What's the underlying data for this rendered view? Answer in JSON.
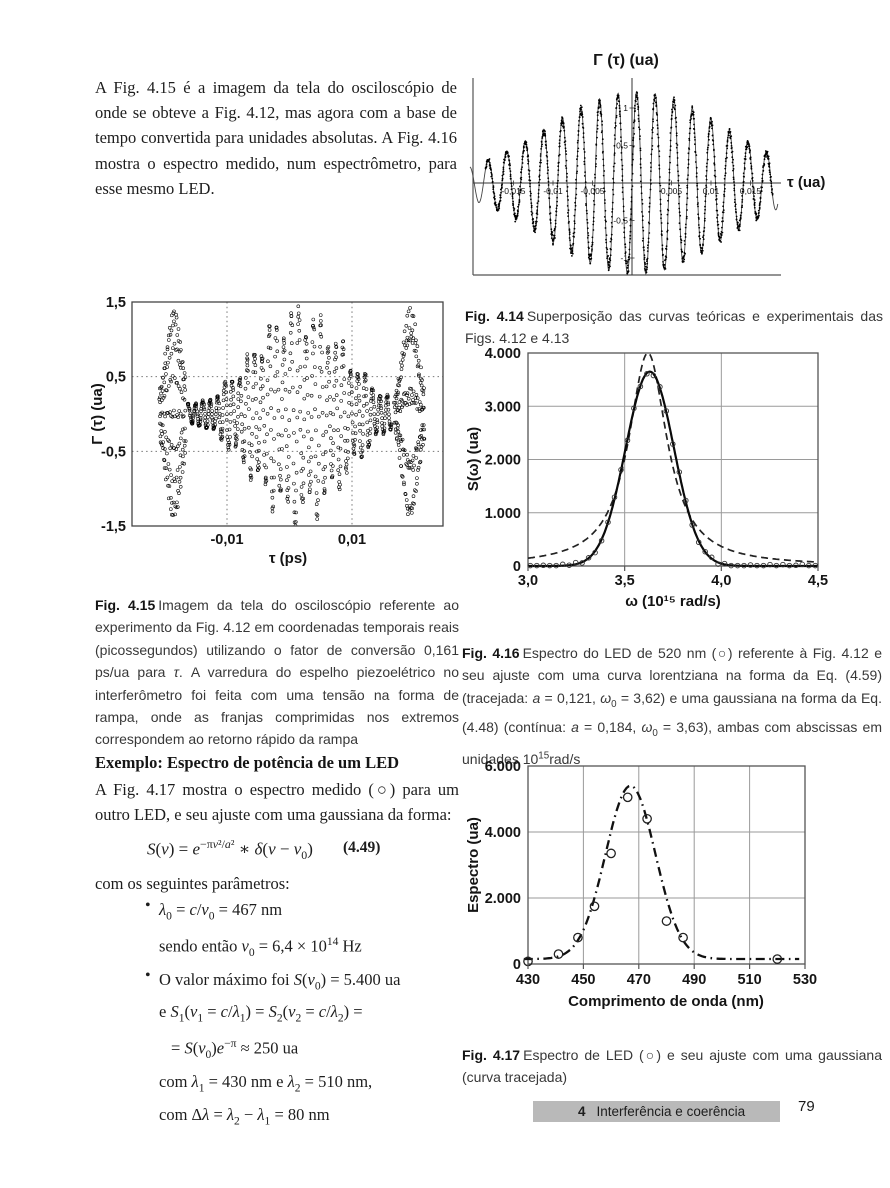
{
  "page": {
    "footer": {
      "chapter_number": "4",
      "chapter_title": "Interferência e coerência"
    },
    "page_number": "79"
  },
  "intro_paragraph": "A Fig. 4.15 é a imagem da tela do osciloscópio de onde se obteve a Fig. 4.12, mas agora com a base de tempo convertida para unidades absolutas. A Fig. 4.16 mostra o espectro medido, num espectrômetro, para esse mesmo LED.",
  "captions": {
    "fig414": {
      "label": "Fig. 4.14",
      "text_html": "Superposição das curvas teóricas e experimentais das Figs. 4.12 e 4.13"
    },
    "fig415": {
      "label": "Fig. 4.15",
      "text_html": "Imagem da tela do osciloscópio referente ao experimento da Fig. 4.12 em coordenadas temporais reais (picossegundos) utilizando o fator de conversão 0,161 ps/ua para <i>τ</i>. A varredura do espelho piezoelétrico no interferômetro foi feita com uma tensão na forma de rampa, onde as franjas comprimidas nos extremos correspondem ao retorno rápido da rampa"
    },
    "fig416": {
      "label": "Fig. 4.16",
      "text_html": "Espectro do LED de 520 nm (○) referente à Fig. 4.12 e seu ajuste com uma curva lorentziana na forma da Eq. (4.59) (tracejada: <i>a</i> = 0,121, <i>ω</i><sub>0</sub> = 3,62) e uma gaussiana na forma da Eq. (4.48) (contínua: <i>a</i> = 0,184, <i>ω</i><sub>0</sub> = 3,63), ambas com abscissas em unidades 10<sup>15</sup>rad/s"
    },
    "fig417": {
      "label": "Fig. 4.17",
      "text_html": "Espectro de LED (○) e seu ajuste com uma gaussiana (curva tracejada)"
    }
  },
  "example": {
    "heading": "Exemplo: Espectro de potência de um LED",
    "intro_html": "A Fig. 4.17 mostra o espectro medido (○) para um outro LED, e seu ajuste com uma gaussiana da forma:",
    "equation_html": "<i>S</i>(<i>ν</i>) = <i>e</i><sup>−π<i>ν</i>²/<i>a</i>²</sup> ∗ <i>δ</i>(<i>ν</i> − <i>ν</i><sub>0</sub>)",
    "equation_number": "(4.49)",
    "params_lead": "com os seguintes parâmetros:",
    "bullets": [
      {
        "lines": [
          "<i>λ</i><sub>0</sub> = <i>c</i>/<i>ν</i><sub>0</sub> = 467 nm",
          "sendo então <i>ν</i><sub>0</sub> = 6,4 × 10<sup>14</sup> Hz"
        ]
      },
      {
        "lines": [
          "O valor máximo foi <i>S</i>(<i>ν</i><sub>0</sub>) = 5.400 ua",
          "e <i>S</i><sub>1</sub>(<i>ν</i><sub>1</sub> = <i>c</i>/<i>λ</i><sub>1</sub>) = <i>S</i><sub>2</sub>(<i>ν</i><sub>2</sub> = <i>c</i>/<i>λ</i><sub>2</sub>) =",
          "= <i>S</i>(<i>ν</i><sub>0</sub>)<i>e</i><sup>−π</sup> ≈ 250 ua",
          "com <i>λ</i><sub>1</sub> = 430 nm e <i>λ</i><sub>2</sub> = 510 nm,",
          "com Δ<i>λ</i> = <i>λ</i><sub>2</sub> − <i>λ</i><sub>1</sub> = 80 nm"
        ]
      }
    ]
  },
  "chart_data": [
    {
      "id": "fig414",
      "type": "line",
      "title": "Γ (τ)  (ua)",
      "xlabel": "τ (ua)",
      "x_tick_labels": [
        "-0,015",
        "-0,01",
        "-0,005",
        "0,005",
        "0,01",
        "0,015"
      ],
      "x_tick_values": [
        -0.015,
        -0.01,
        -0.005,
        0.005,
        0.01,
        0.015
      ],
      "y_tick_labels": [
        "1",
        "0,5",
        "-0,5",
        "-1"
      ],
      "y_tick_values": [
        1,
        0.5,
        -0.5,
        -1
      ],
      "x_range": [
        -0.0205,
        0.0185
      ],
      "y_range": [
        -1.45,
        1.45
      ],
      "series": [
        {
          "name": "curva experimental (pontos)",
          "style": "dots"
        },
        {
          "name": "curva teórica (linha contínua)",
          "style": "line"
        }
      ],
      "signal_model": {
        "carrier_period": 0.00235,
        "envelope_peak": 1.22,
        "envelope_center": 0.0005,
        "envelope_sigma": 0.016,
        "dots_range": [
          -0.0185,
          0.0178
        ]
      }
    },
    {
      "id": "fig415",
      "type": "scatter",
      "xlabel": "τ (ps)",
      "ylabel": "Γ (τ)  (ua)",
      "marker": "open-circle",
      "grid": "dotted",
      "x_tick_labels": [
        "-0,01",
        "0,01"
      ],
      "x_tick_values": [
        -0.01,
        0.01
      ],
      "y_tick_labels": [
        "1,5",
        "0,5",
        "-0,5",
        "-1,5"
      ],
      "y_tick_values": [
        1.5,
        0.5,
        -0.5,
        -1.5
      ],
      "x_range": [
        -0.0252,
        0.0248
      ],
      "y_range": [
        -1.5,
        1.5
      ],
      "conversion_factor": "0,161 ps/ua",
      "signal_model": {
        "carrier_period": 0.00118,
        "envelope_peak": 1.27,
        "envelope_center": 0.0015,
        "envelope_sigma": 0.0105,
        "envelope_floor": 0.15,
        "main_range": [
          -0.0163,
          0.0164
        ],
        "bursts": [
          {
            "center": -0.0185,
            "sigma": 0.0017,
            "peak": 1.32,
            "period": 0.00023,
            "range": [
              -0.0208,
              -0.0166
            ]
          },
          {
            "center": 0.0193,
            "sigma": 0.0017,
            "peak": 1.32,
            "period": 0.00023,
            "range": [
              0.0168,
              0.0216
            ]
          }
        ]
      }
    },
    {
      "id": "fig416",
      "type": "line",
      "xlabel": "ω (10¹⁵ rad/s)",
      "ylabel": "S(ω)  (ua)",
      "x_tick_labels": [
        "3,0",
        "3,5",
        "4,0",
        "4,5"
      ],
      "x_tick_values": [
        3.0,
        3.5,
        4.0,
        4.5
      ],
      "y_tick_labels": [
        "0",
        "1.000",
        "2.000",
        "3.000",
        "4.000"
      ],
      "y_tick_values": [
        0,
        1000,
        2000,
        3000,
        4000
      ],
      "x_range": [
        3.0,
        4.5
      ],
      "y_range": [
        0,
        4000
      ],
      "series": [
        {
          "name": "lorentziana Eq. (4.59) (tracejada)",
          "style": "dashed",
          "a": 0.121,
          "omega0": 3.62,
          "peak": 4000
        },
        {
          "name": "gaussiana Eq. (4.48) (contínua)",
          "style": "solid",
          "a": 0.184,
          "omega0": 3.63,
          "peak": 3650,
          "sigma": 0.125
        },
        {
          "name": "dados LED 520 nm (○)",
          "style": "circles",
          "spacing": 0.0335
        }
      ]
    },
    {
      "id": "fig417",
      "type": "scatter",
      "xlabel": "Comprimento de onda (nm)",
      "ylabel": "Espectro (ua)",
      "marker": "open-circle",
      "x_tick_labels": [
        "430",
        "450",
        "470",
        "490",
        "510",
        "530"
      ],
      "x_tick_values": [
        430,
        450,
        470,
        490,
        510,
        530
      ],
      "y_tick_labels": [
        "0",
        "2.000",
        "4.000",
        "6.000"
      ],
      "y_tick_values": [
        0,
        2000,
        4000,
        6000
      ],
      "x_range": [
        430,
        530
      ],
      "y_range": [
        0,
        6000
      ],
      "points": [
        [
          430,
          80
        ],
        [
          441,
          300
        ],
        [
          448,
          800
        ],
        [
          454,
          1750
        ],
        [
          460,
          3350
        ],
        [
          466,
          5050
        ],
        [
          473,
          4400
        ],
        [
          480,
          1300
        ],
        [
          486,
          800
        ],
        [
          520,
          150
        ]
      ],
      "fit_curve": {
        "type": "gaussian",
        "style": "dash-dot",
        "peak": 5400,
        "center": 467,
        "sigma": 9,
        "baseline": 150
      }
    }
  ]
}
